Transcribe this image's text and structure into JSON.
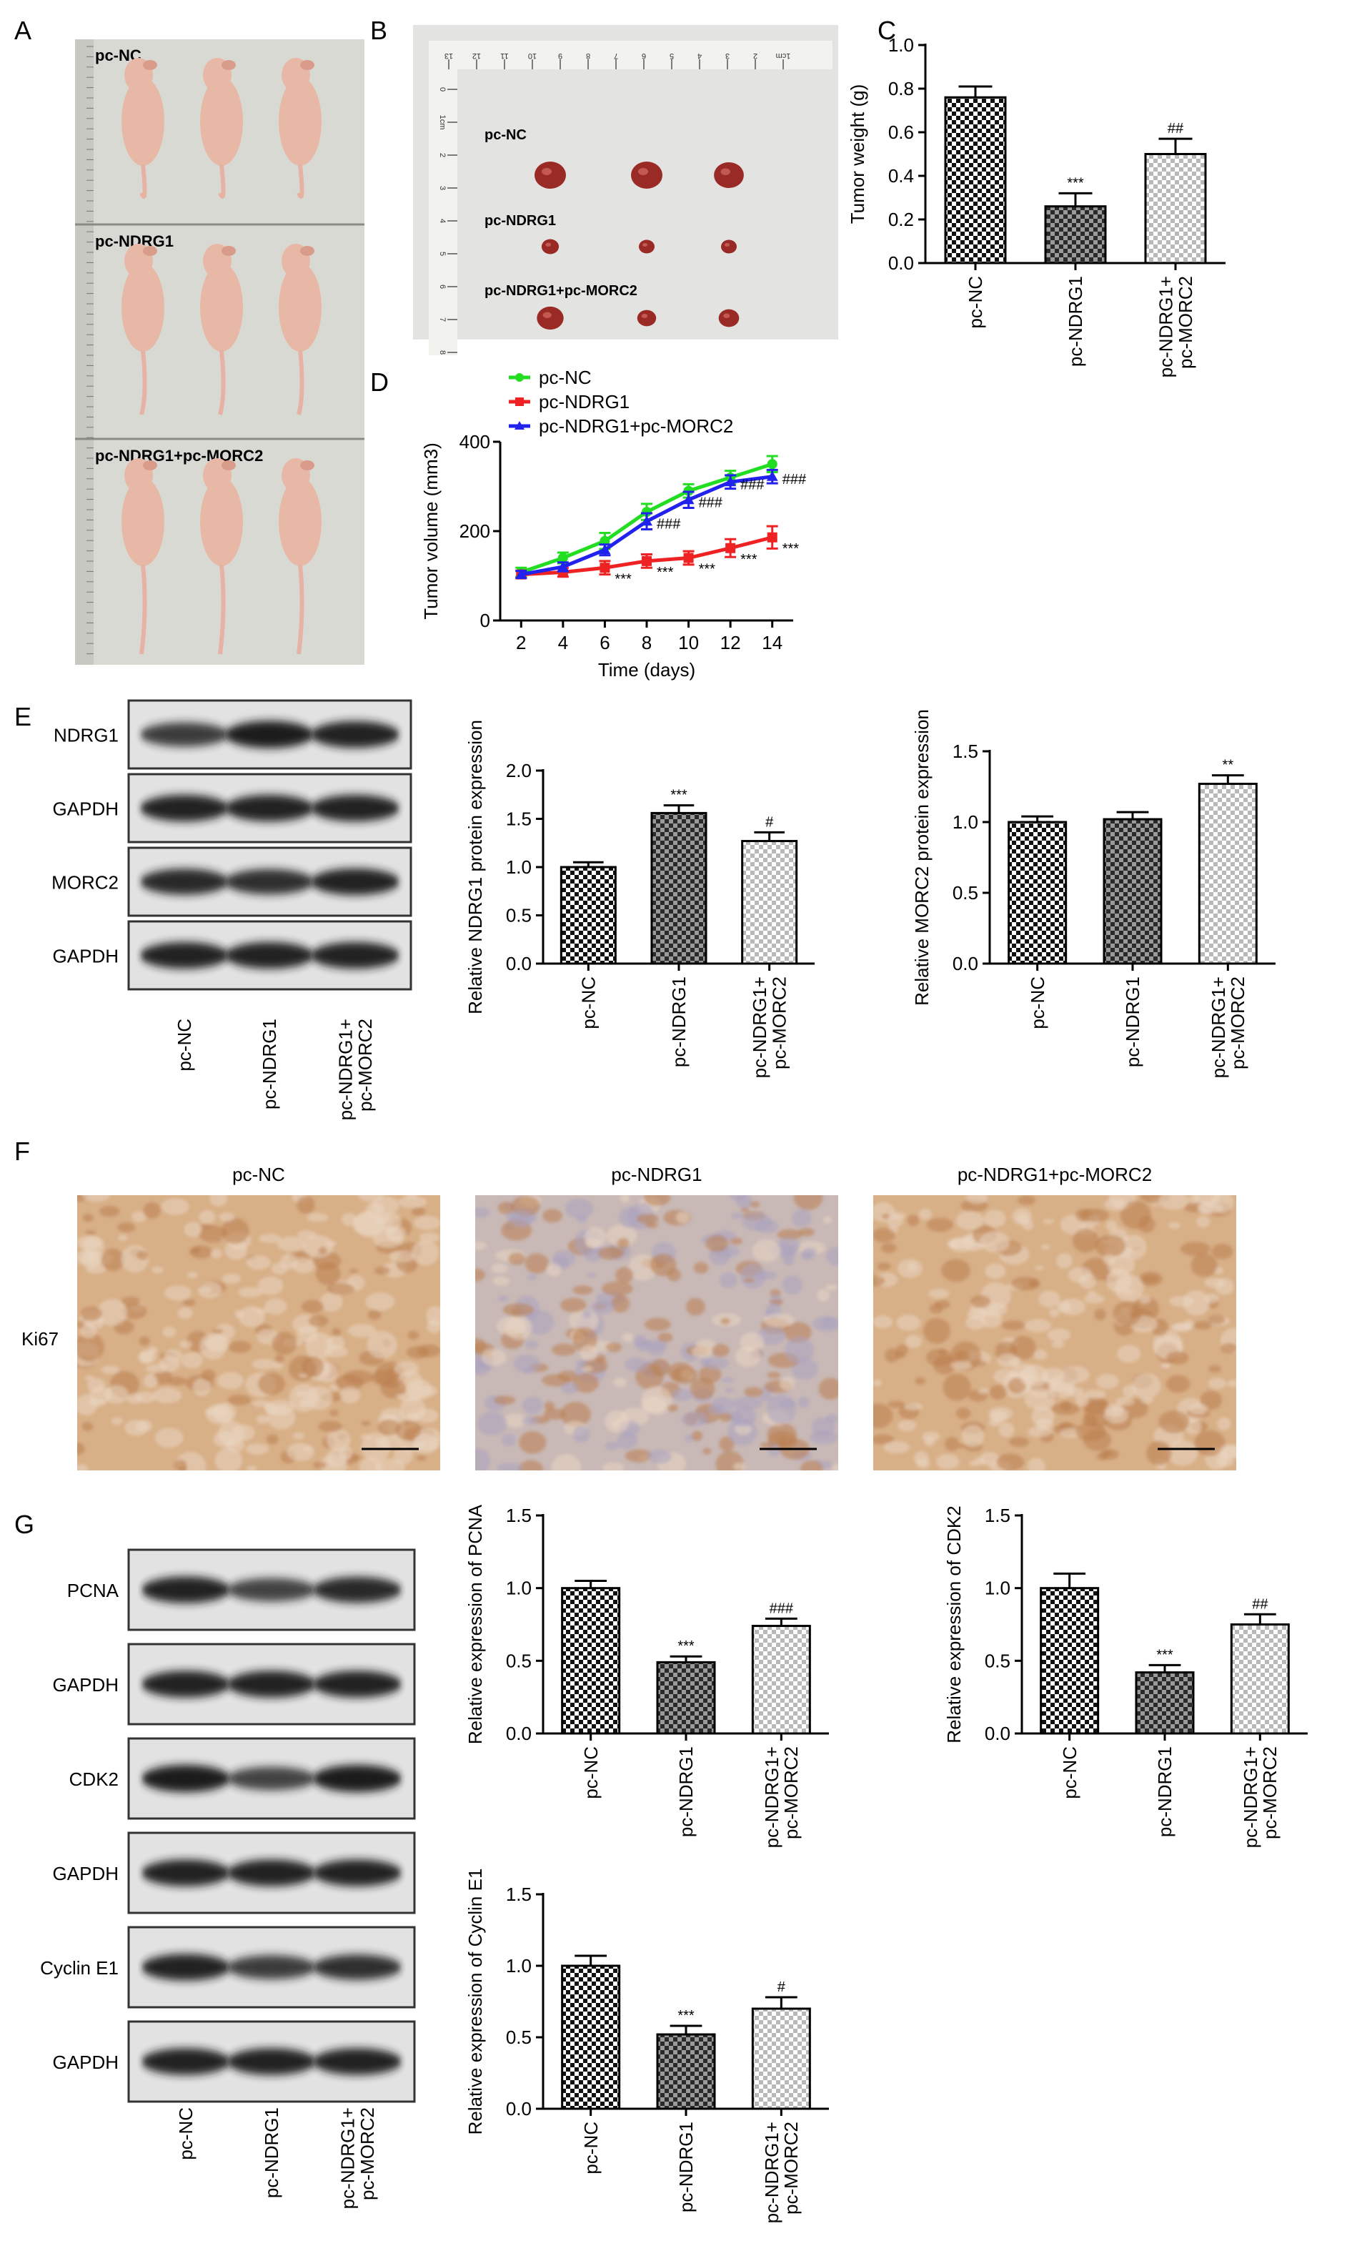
{
  "panel_letters": [
    "A",
    "B",
    "C",
    "D",
    "E",
    "F",
    "G"
  ],
  "colors": {
    "black": "#000000",
    "photo_bg_mice": "#d9d9d4",
    "photo_bg_tumor": "#e3e3e1",
    "mouse_skin": "#e8b8a6",
    "tumor": "#9a2a26",
    "ruler": "#f2f2ee",
    "blot_bg": "#e2e2e2",
    "band": "#1a1a1a",
    "ihc_base": "#d8b088",
    "ihc_dark": "#b97d4e",
    "ihc_light": "#ead6c2",
    "ihc_blue": "#a9a3c0",
    "line_nc": "#22dd22",
    "line_ndrg1": "#ee2222",
    "line_combo": "#2222ee"
  },
  "panel_a": {
    "groups": [
      "pc-NC",
      "pc-NDRG1",
      "pc-NDRG1+pc-MORC2"
    ],
    "mice_per_group": 3
  },
  "panel_b": {
    "groups": [
      "pc-NC",
      "pc-NDRG1",
      "pc-NDRG1+pc-MORC2"
    ],
    "tumor_size_rel": [
      [
        1.0,
        1.0,
        0.95
      ],
      [
        0.55,
        0.5,
        0.5
      ],
      [
        0.85,
        0.6,
        0.65
      ]
    ],
    "ruler_top_labels": [
      "13",
      "12",
      "11",
      "10",
      "9",
      "8",
      "7",
      "6",
      "5",
      "4",
      "3",
      "2",
      "1cm"
    ],
    "ruler_left_labels": [
      "0",
      "1cm",
      "2",
      "3",
      "4",
      "5",
      "6",
      "7",
      "8"
    ]
  },
  "panel_e_blot": {
    "rows": [
      "NDRG1",
      "GAPDH",
      "MORC2",
      "GAPDH"
    ],
    "band_intensity": [
      [
        0.75,
        1.0,
        0.95
      ],
      [
        0.95,
        0.95,
        0.95
      ],
      [
        0.9,
        0.85,
        0.95
      ],
      [
        0.95,
        0.95,
        0.95
      ]
    ],
    "lanes": [
      "pc-NC",
      "pc-NDRG1",
      "pc-NDRG1+\npc-MORC2"
    ]
  },
  "panel_f": {
    "stain_label": "Ki67",
    "titles": [
      "pc-NC",
      "pc-NDRG1",
      "pc-NDRG1+pc-MORC2"
    ],
    "staining_level": [
      1.0,
      0.35,
      0.75
    ]
  },
  "panel_g_blot": {
    "rows": [
      "PCNA",
      "GAPDH",
      "CDK2",
      "GAPDH",
      "Cyclin E1",
      "GAPDH"
    ],
    "band_intensity": [
      [
        0.95,
        0.7,
        0.9
      ],
      [
        0.95,
        0.95,
        0.95
      ],
      [
        1.0,
        0.7,
        1.0
      ],
      [
        0.95,
        0.95,
        0.95
      ],
      [
        0.95,
        0.75,
        0.85
      ],
      [
        0.95,
        0.95,
        0.95
      ]
    ],
    "lanes": [
      "pc-NC",
      "pc-NDRG1",
      "pc-NDRG1+\npc-MORC2"
    ]
  },
  "chart_data": [
    {
      "id": "C",
      "type": "bar",
      "categories": [
        "pc-NC",
        "pc-NDRG1",
        "pc-NDRG1+\npc-MORC2"
      ],
      "values": [
        0.76,
        0.26,
        0.5
      ],
      "errors": [
        0.05,
        0.06,
        0.07
      ],
      "annotations": [
        "",
        "***",
        "##"
      ],
      "ylabel": "Tumor weight (g)",
      "ylim": [
        0,
        1.0
      ],
      "yticks": [
        "0.0",
        "0.2",
        "0.4",
        "0.6",
        "0.8",
        "1.0"
      ],
      "patterns": [
        "check-dark",
        "check-mid",
        "check-light"
      ],
      "grid": false
    },
    {
      "id": "D",
      "type": "line",
      "x": [
        2,
        4,
        6,
        8,
        10,
        12,
        14
      ],
      "xlabel": "Time (days)",
      "ylabel": "Tumor volume (mm3)",
      "ylim": [
        0,
        400
      ],
      "xlim": [
        1,
        15
      ],
      "yticks": [
        "0",
        "200",
        "400"
      ],
      "xticks": [
        "2",
        "4",
        "6",
        "8",
        "10",
        "12",
        "14"
      ],
      "series": [
        {
          "name": "pc-NC",
          "values": [
            108,
            140,
            178,
            243,
            290,
            320,
            350
          ],
          "errors": [
            10,
            12,
            18,
            18,
            15,
            15,
            18
          ],
          "labels": [
            "",
            "",
            "",
            "",
            "",
            "",
            ""
          ]
        },
        {
          "name": "pc-NDRG1",
          "values": [
            103,
            108,
            118,
            133,
            140,
            162,
            186
          ],
          "errors": [
            8,
            10,
            15,
            15,
            15,
            20,
            25
          ],
          "labels": [
            "",
            "",
            "***",
            "***",
            "***",
            "***",
            "***"
          ]
        },
        {
          "name": "pc-NDRG1+pc-MORC2",
          "values": [
            103,
            120,
            158,
            222,
            270,
            310,
            322
          ],
          "errors": [
            8,
            10,
            12,
            18,
            18,
            15,
            15
          ],
          "labels": [
            "",
            "",
            "",
            "###",
            "###",
            "###",
            "###"
          ]
        }
      ],
      "legend": "top-left",
      "grid": false
    },
    {
      "id": "E1",
      "type": "bar",
      "categories": [
        "pc-NC",
        "pc-NDRG1",
        "pc-NDRG1+\npc-MORC2"
      ],
      "values": [
        1.0,
        1.56,
        1.27
      ],
      "errors": [
        0.05,
        0.08,
        0.09
      ],
      "annotations": [
        "",
        "***",
        "#"
      ],
      "ylabel": "Relative NDRG1 protein expression",
      "ylim": [
        0,
        2.0
      ],
      "yticks": [
        "0.0",
        "0.5",
        "1.0",
        "1.5",
        "2.0"
      ],
      "patterns": [
        "check-dark",
        "check-mid",
        "check-light"
      ],
      "grid": false
    },
    {
      "id": "E2",
      "type": "bar",
      "categories": [
        "pc-NC",
        "pc-NDRG1",
        "pc-NDRG1+\npc-MORC2"
      ],
      "values": [
        1.0,
        1.02,
        1.27
      ],
      "errors": [
        0.04,
        0.05,
        0.06
      ],
      "annotations": [
        "",
        "",
        "**"
      ],
      "ylabel": "Relative MORC2 protein expression",
      "ylim": [
        0,
        1.5
      ],
      "yticks": [
        "0.0",
        "0.5",
        "1.0",
        "1.5"
      ],
      "patterns": [
        "check-dark",
        "check-mid",
        "check-light"
      ],
      "grid": false
    },
    {
      "id": "G1",
      "type": "bar",
      "categories": [
        "pc-NC",
        "pc-NDRG1",
        "pc-NDRG1+\npc-MORC2"
      ],
      "values": [
        1.0,
        0.49,
        0.74
      ],
      "errors": [
        0.05,
        0.04,
        0.05
      ],
      "annotations": [
        "",
        "***",
        "###"
      ],
      "ylabel": "Relative expression of PCNA",
      "ylim": [
        0,
        1.5
      ],
      "yticks": [
        "0.0",
        "0.5",
        "1.0",
        "1.5"
      ],
      "patterns": [
        "check-dark",
        "check-mid",
        "check-light"
      ],
      "grid": false
    },
    {
      "id": "G2",
      "type": "bar",
      "categories": [
        "pc-NC",
        "pc-NDRG1",
        "pc-NDRG1+\npc-MORC2"
      ],
      "values": [
        1.0,
        0.42,
        0.75
      ],
      "errors": [
        0.1,
        0.05,
        0.07
      ],
      "annotations": [
        "",
        "***",
        "##"
      ],
      "ylabel": "Relative expression of CDK2",
      "ylim": [
        0,
        1.5
      ],
      "yticks": [
        "0.0",
        "0.5",
        "1.0",
        "1.5"
      ],
      "patterns": [
        "check-dark",
        "check-mid",
        "check-light"
      ],
      "grid": false
    },
    {
      "id": "G3",
      "type": "bar",
      "categories": [
        "pc-NC",
        "pc-NDRG1",
        "pc-NDRG1+\npc-MORC2"
      ],
      "values": [
        1.0,
        0.52,
        0.7
      ],
      "errors": [
        0.07,
        0.06,
        0.08
      ],
      "annotations": [
        "",
        "***",
        "#"
      ],
      "ylabel": "Relative expression of Cyclin E1",
      "ylim": [
        0,
        1.5
      ],
      "yticks": [
        "0.0",
        "0.5",
        "1.0",
        "1.5"
      ],
      "patterns": [
        "check-dark",
        "check-mid",
        "check-light"
      ],
      "grid": false
    }
  ]
}
